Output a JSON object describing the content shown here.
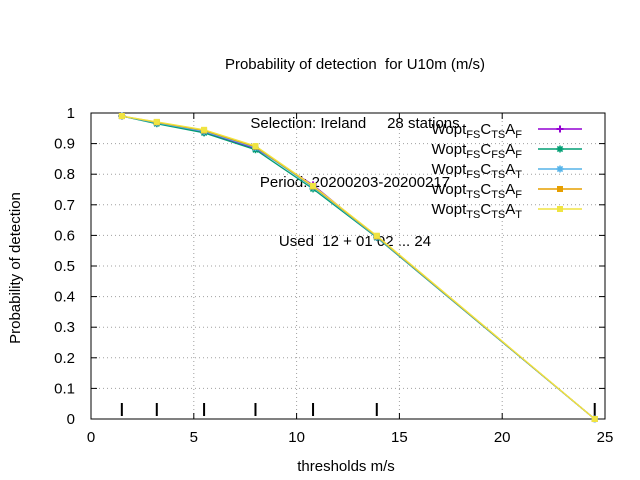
{
  "chart_data": {
    "type": "line",
    "title_lines": [
      "Probability of detection  for U10m (m/s)",
      "Selection: Ireland     28 stations",
      "Period: 20200203-20200217",
      "Used  12 + 01 02 ... 24"
    ],
    "xlabel": "thresholds m/s",
    "ylabel": "Probability of detection",
    "xlim": [
      0,
      25
    ],
    "ylim": [
      0,
      1
    ],
    "xticks": [
      0,
      5,
      10,
      15,
      20,
      25
    ],
    "yticks": [
      0,
      0.1,
      0.2,
      0.3,
      0.4,
      0.5,
      0.6,
      0.7,
      0.8,
      0.9,
      1
    ],
    "ytick_labels": [
      "0",
      "0.1",
      "0.2",
      "0.3",
      "0.4",
      "0.5",
      "0.6",
      "0.7",
      "0.8",
      "0.9",
      "1"
    ],
    "grid": true,
    "legend_position": "top-right",
    "threshold_markers": [
      1.5,
      3.2,
      5.5,
      8.0,
      10.8,
      13.9,
      24.5
    ],
    "series": [
      {
        "name": "Wopt_FS C_TS A_F",
        "legend": {
          "b1": "Wopt",
          "s1": "FS",
          "b2": "C",
          "s2": "TS",
          "b3": "A",
          "s3": "F"
        },
        "color": "#9400d3",
        "marker": "plus",
        "x": [
          1.5,
          3.2,
          5.5,
          8.0,
          10.8,
          13.9,
          24.5
        ],
        "y": [
          0.99,
          0.967,
          0.937,
          0.884,
          0.765,
          0.594,
          0.0
        ]
      },
      {
        "name": "Wopt_FS C_FS A_F",
        "legend": {
          "b1": "Wopt",
          "s1": "FS",
          "b2": "C",
          "s2": "FS",
          "b3": "A",
          "s3": "F"
        },
        "color": "#009e73",
        "marker": "star",
        "x": [
          1.5,
          3.2,
          5.5,
          8.0,
          10.8,
          13.9,
          24.5
        ],
        "y": [
          0.99,
          0.965,
          0.935,
          0.88,
          0.752,
          0.593,
          0.0
        ]
      },
      {
        "name": "Wopt_FS C_TS A_T",
        "legend": {
          "b1": "Wopt",
          "s1": "FS",
          "b2": "C",
          "s2": "TS",
          "b3": "A",
          "s3": "T"
        },
        "color": "#56b4e9",
        "marker": "star",
        "x": [
          1.5,
          3.2,
          5.5,
          8.0,
          10.8,
          13.9,
          24.5
        ],
        "y": [
          0.99,
          0.968,
          0.94,
          0.887,
          0.758,
          0.595,
          0.0
        ]
      },
      {
        "name": "Wopt_TS C_TS A_F",
        "legend": {
          "b1": "Wopt",
          "s1": "TS",
          "b2": "C",
          "s2": "TS",
          "b3": "A",
          "s3": "F"
        },
        "color": "#e69f00",
        "marker": "square",
        "x": [
          1.5,
          3.2,
          5.5,
          8.0,
          10.8,
          13.9,
          24.5
        ],
        "y": [
          0.99,
          0.97,
          0.943,
          0.89,
          0.76,
          0.597,
          0.0
        ]
      },
      {
        "name": "Wopt_TS C_TS A_T",
        "legend": {
          "b1": "Wopt",
          "s1": "TS",
          "b2": "C",
          "s2": "TS",
          "b3": "A",
          "s3": "T"
        },
        "color": "#f0e442",
        "marker": "square",
        "x": [
          1.5,
          3.2,
          5.5,
          8.0,
          10.8,
          13.9,
          24.5
        ],
        "y": [
          0.99,
          0.971,
          0.945,
          0.892,
          0.762,
          0.599,
          0.0
        ]
      }
    ]
  }
}
